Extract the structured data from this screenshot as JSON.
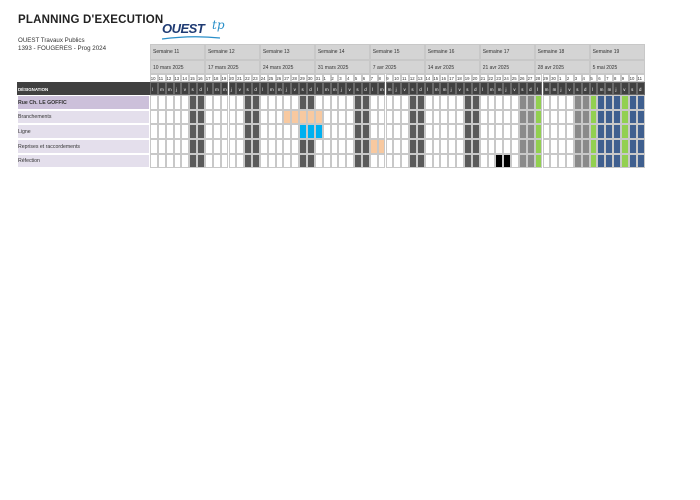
{
  "header": {
    "title": "PLANNING D'EXECUTION",
    "company": "OUEST Travaux Publics",
    "project": "1393 - FOUGERES - Prog 2024",
    "logo_text": "OUEST",
    "logo_suffix": "tp"
  },
  "colors": {
    "header_gray": "#d4d4d4",
    "weekend": "#5a5a5a",
    "holiday_light": "#8a8a8a",
    "green": "#92d050",
    "peach": "#f8c9a0",
    "cyan": "#00b0f0",
    "black": "#000000",
    "navy": "#3f5f8f",
    "row_purple": "#e4dfec",
    "row_purple_dark": "#ccc0da",
    "designation_bg": "#404040"
  },
  "table": {
    "designation_label": "DÉSIGNATION",
    "weeks": [
      {
        "label": "Semaine 11",
        "date": "10 mars 2025"
      },
      {
        "label": "Semaine 12",
        "date": "17 mars 2025"
      },
      {
        "label": "Semaine 13",
        "date": "24 mars 2025"
      },
      {
        "label": "Semaine 14",
        "date": "31 mars 2025"
      },
      {
        "label": "Semaine 15",
        "date": "7 avr 2025"
      },
      {
        "label": "Semaine 16",
        "date": "14 avr 2025"
      },
      {
        "label": "Semaine 17",
        "date": "21 avr 2025"
      },
      {
        "label": "Semaine 18",
        "date": "28 avr 2025"
      },
      {
        "label": "Semaine 19",
        "date": "5 mai 2025"
      }
    ],
    "day_numbers": [
      "10",
      "11",
      "12",
      "13",
      "14",
      "15",
      "16",
      "17",
      "18",
      "19",
      "20",
      "21",
      "22",
      "23",
      "24",
      "25",
      "26",
      "27",
      "28",
      "29",
      "30",
      "31",
      "1",
      "2",
      "3",
      "4",
      "5",
      "6",
      "7",
      "8",
      "9",
      "10",
      "11",
      "12",
      "13",
      "14",
      "15",
      "16",
      "17",
      "18",
      "19",
      "20",
      "21",
      "22",
      "23",
      "24",
      "25",
      "26",
      "27",
      "28",
      "29",
      "30",
      "1",
      "2",
      "3",
      "4",
      "5",
      "6",
      "7",
      "8",
      "9",
      "10",
      "11"
    ],
    "day_letters": [
      "l",
      "m",
      "m",
      "j",
      "v",
      "s",
      "d"
    ],
    "rows": [
      {
        "label": "Rue Ch. LE GOFFIC",
        "kind": "group",
        "bars": []
      },
      {
        "label": "Branchements",
        "kind": "task",
        "bars": [
          {
            "start": 17,
            "end": 21,
            "color": "peach"
          }
        ]
      },
      {
        "label": "Ligne",
        "kind": "task",
        "bars": [
          {
            "start": 19,
            "end": 21,
            "color": "cyan"
          }
        ]
      },
      {
        "label": "Reprises et raccordements",
        "kind": "task",
        "bars": [
          {
            "start": 28,
            "end": 29,
            "color": "peach"
          }
        ]
      },
      {
        "label": "Réfection",
        "kind": "task",
        "bars": [
          {
            "start": 44,
            "end": 45,
            "color": "black"
          }
        ]
      }
    ],
    "holidays": [
      {
        "day_index": 49,
        "color": "green"
      },
      {
        "day_index": 56,
        "color": "green"
      },
      {
        "day_index": 60,
        "color": "green"
      }
    ],
    "navy_range": {
      "start": 56,
      "end": 62
    },
    "light_gray_days": [
      47,
      48,
      54,
      55
    ]
  }
}
